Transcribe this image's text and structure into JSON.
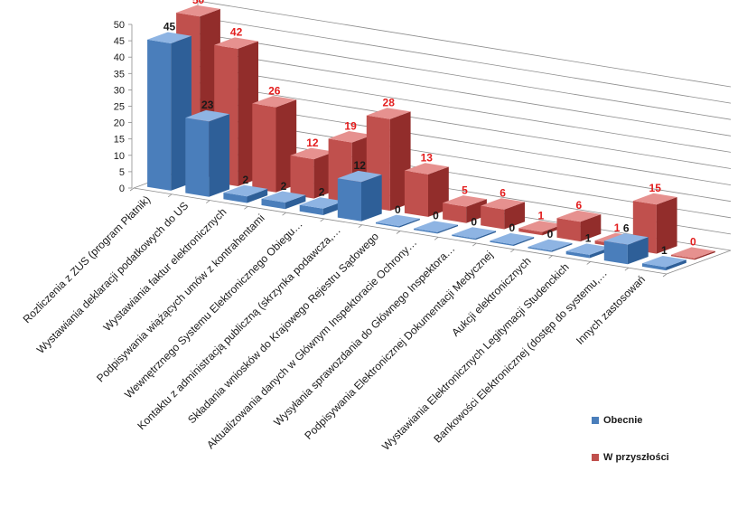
{
  "chart_data": {
    "type": "bar",
    "categories": [
      "Rozliczenia z ZUS (program Płatnik)",
      "Wystawiania deklaracji podatkowych do US",
      "Wystawiania faktur elektronicznych",
      "Podpisywania wiążących umów z kontrahentami",
      "Wewnętrznego Systemu Elektronicznego Obiegu…",
      "Kontaktu z administracją publiczną (skrzynka podawcza,…",
      "Składania wniosków do Krajowego Rejestru Sądowego",
      "Aktualizowania danych w Głównym Inspektoracie Ochrony…",
      "Wysyłania sprawozdania do Głównego Inspektora…",
      "Podpisywania Elektronicznej Dokumentacji Medycznej",
      "Aukcji elektronicznych",
      "Wystawiania Elektronicznych Legitymacji Studenckich",
      "Bankowości Elektronicznej (dostęp do systemu,…",
      "Innych zastosowań"
    ],
    "series": [
      {
        "name": "Obecnie",
        "values": [
          45,
          23,
          2,
          2,
          2,
          12,
          0,
          0,
          0,
          0,
          0,
          1,
          6,
          1
        ]
      },
      {
        "name": "W przyszłości",
        "values": [
          50,
          42,
          26,
          12,
          19,
          28,
          13,
          5,
          6,
          1,
          6,
          1,
          15,
          0
        ]
      }
    ],
    "ylim": [
      0,
      50
    ],
    "yticks": [
      0,
      5,
      10,
      15,
      20,
      25,
      30,
      35,
      40,
      45,
      50
    ],
    "grid": true,
    "legend": "bottom-right",
    "title": "",
    "xlabel": "",
    "ylabel": ""
  },
  "legend": {
    "obecnie": "Obecnie",
    "w_przyszlosci": "W przyszłości"
  },
  "colors": {
    "obecnie_front": "#4a7ebb",
    "obecnie_side": "#2e5f98",
    "obecnie_top": "#8eb4e3",
    "przyszlosc_front": "#c0504d",
    "przyszlosc_side": "#922d2b",
    "przyszlosc_top": "#e6918f",
    "obecnie_label": "#1a1a1a",
    "przyszlosc_label": "#e31c1c",
    "grid": "#8c8c8c"
  }
}
